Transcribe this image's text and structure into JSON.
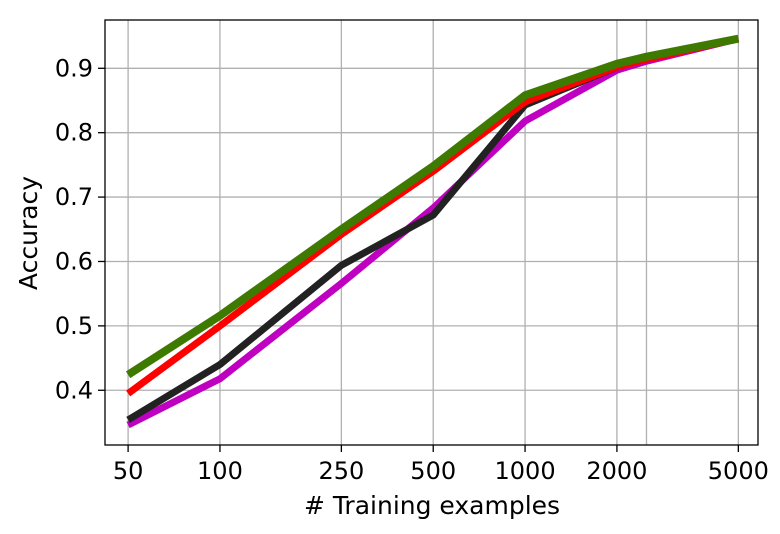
{
  "chart_data": {
    "type": "line",
    "xlabel": "# Training examples",
    "ylabel": "Accuracy",
    "x_scale": "log",
    "grid": true,
    "xlim": [
      42,
      5800
    ],
    "ylim": [
      0.315,
      0.975
    ],
    "xticks": [
      {
        "value": 50,
        "label": "50"
      },
      {
        "value": 100,
        "label": "100"
      },
      {
        "value": 250,
        "label": "250"
      },
      {
        "value": 500,
        "label": "500"
      },
      {
        "value": 1000,
        "label": "1000"
      },
      {
        "value": 2000,
        "label": "2000"
      },
      {
        "value": 5000,
        "label": "5000"
      }
    ],
    "extra_gridlines_x": [
      2500
    ],
    "yticks": [
      {
        "value": 0.4,
        "label": "0.4"
      },
      {
        "value": 0.5,
        "label": "0.5"
      },
      {
        "value": 0.6,
        "label": "0.6"
      },
      {
        "value": 0.7,
        "label": "0.7"
      },
      {
        "value": 0.8,
        "label": "0.8"
      },
      {
        "value": 0.9,
        "label": "0.9"
      }
    ],
    "x": [
      50,
      100,
      250,
      500,
      1000,
      2000,
      2500,
      5000
    ],
    "series": [
      {
        "color": "#c000c0",
        "width": 7,
        "values": [
          0.346,
          0.418,
          0.566,
          0.683,
          0.818,
          0.897,
          0.911,
          0.946
        ]
      },
      {
        "color": "#222222",
        "width": 7,
        "values": [
          0.354,
          0.44,
          0.594,
          0.672,
          0.843,
          0.902,
          0.915,
          0.946
        ]
      },
      {
        "color": "#ff0000",
        "width": 7,
        "values": [
          0.395,
          0.5,
          0.642,
          0.74,
          0.848,
          0.902,
          0.914,
          0.946
        ]
      },
      {
        "color": "#3f7a00",
        "width": 8,
        "values": [
          0.424,
          0.516,
          0.65,
          0.748,
          0.858,
          0.907,
          0.918,
          0.946
        ]
      }
    ]
  }
}
